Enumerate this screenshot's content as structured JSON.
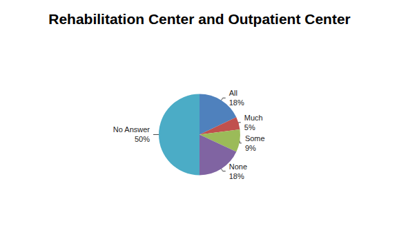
{
  "chart_data": {
    "type": "pie",
    "title": "Rehabilitation Center and Outpatient Center",
    "categories": [
      "All",
      "Much",
      "Some",
      "None",
      "No Answer"
    ],
    "values": [
      18,
      5,
      9,
      18,
      50
    ],
    "value_labels": [
      "18%",
      "5%",
      "9%",
      "18%",
      "50%"
    ],
    "colors": [
      "#4f81bd",
      "#c0504d",
      "#9bbb59",
      "#8064a2",
      "#4bacc6"
    ],
    "data_labels": true
  }
}
